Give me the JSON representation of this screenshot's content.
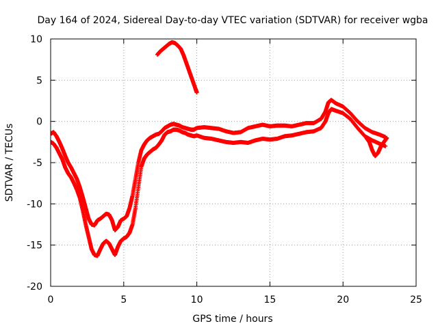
{
  "chart_data": {
    "type": "line",
    "title": "Day 164 of 2024, Sidereal Day-to-day VTEC variation (SDTVAR) for receiver wgba",
    "xlabel": "GPS time / hours",
    "ylabel": "SDTVAR / TECUs",
    "xlim": [
      0,
      25
    ],
    "ylim": [
      -20,
      10
    ],
    "xticks": [
      0,
      5,
      10,
      15,
      20,
      25
    ],
    "yticks": [
      -20,
      -15,
      -10,
      -5,
      0,
      5,
      10
    ],
    "xtick_labels": [
      "0",
      "5",
      "10",
      "15",
      "20",
      "25"
    ],
    "ytick_labels": [
      "-20",
      "-15",
      "-10",
      "-5",
      "0",
      "5",
      "10"
    ],
    "grid": true,
    "legend": "none",
    "marker": "plus",
    "series": [
      {
        "name": "SDTVAR main band (upper edge)",
        "color": "#ff0000",
        "x": [
          0.0,
          0.2,
          0.4,
          0.6,
          0.8,
          1.0,
          1.2,
          1.4,
          1.6,
          1.8,
          2.0,
          2.2,
          2.4,
          2.6,
          2.8,
          3.0,
          3.2,
          3.4,
          3.6,
          3.8,
          4.0,
          4.2,
          4.4,
          4.6,
          4.8,
          5.0,
          5.2,
          5.4,
          5.6,
          5.8,
          6.0,
          6.2,
          6.4,
          6.6,
          6.8,
          7.0,
          7.2,
          7.4,
          7.6,
          7.8,
          8.0,
          8.2,
          8.4,
          8.6,
          8.8,
          9.0,
          9.2,
          9.4,
          9.6,
          9.8,
          10.0,
          10.5,
          11.0,
          11.5,
          12.0,
          12.5,
          13.0,
          13.5,
          14.0,
          14.5,
          15.0,
          15.5,
          16.0,
          16.5,
          17.0,
          17.5,
          18.0,
          18.5,
          18.8,
          19.0,
          19.2,
          19.5,
          20.0,
          20.5,
          21.0,
          21.5,
          22.0,
          22.5,
          22.9
        ],
        "values": [
          -1.5,
          -1.3,
          -1.8,
          -2.5,
          -3.3,
          -4.2,
          -5.0,
          -5.6,
          -6.3,
          -7.0,
          -8.0,
          -9.2,
          -10.5,
          -11.8,
          -12.5,
          -12.6,
          -12.0,
          -11.8,
          -11.5,
          -11.2,
          -11.3,
          -12.0,
          -13.2,
          -12.8,
          -12.0,
          -11.8,
          -11.5,
          -10.5,
          -9.0,
          -7.0,
          -5.0,
          -3.5,
          -2.8,
          -2.3,
          -2.0,
          -1.8,
          -1.6,
          -1.5,
          -1.2,
          -0.8,
          -0.6,
          -0.4,
          -0.3,
          -0.4,
          -0.5,
          -0.7,
          -0.8,
          -0.9,
          -1.0,
          -1.0,
          -0.8,
          -0.7,
          -0.8,
          -0.9,
          -1.2,
          -1.4,
          -1.3,
          -0.8,
          -0.6,
          -0.4,
          -0.6,
          -0.5,
          -0.5,
          -0.6,
          -0.4,
          -0.2,
          -0.2,
          0.3,
          1.2,
          2.3,
          2.6,
          2.2,
          1.8,
          1.0,
          0.0,
          -0.8,
          -1.3,
          -1.6,
          -1.9
        ]
      },
      {
        "name": "SDTVAR main band (lower edge)",
        "color": "#ff0000",
        "x": [
          0.0,
          0.2,
          0.4,
          0.6,
          0.8,
          1.0,
          1.2,
          1.4,
          1.6,
          1.8,
          2.0,
          2.2,
          2.4,
          2.6,
          2.8,
          3.0,
          3.2,
          3.4,
          3.6,
          3.8,
          4.0,
          4.2,
          4.4,
          4.6,
          4.8,
          5.0,
          5.2,
          5.4,
          5.6,
          5.8,
          6.0,
          6.2,
          6.4,
          6.6,
          6.8,
          7.0,
          7.2,
          7.4,
          7.6,
          7.8,
          8.0,
          8.2,
          8.4,
          8.6,
          8.8,
          9.0,
          9.2,
          9.4,
          9.6,
          9.8,
          10.0,
          10.5,
          11.0,
          11.5,
          12.0,
          12.5,
          13.0,
          13.5,
          14.0,
          14.5,
          15.0,
          15.5,
          16.0,
          16.5,
          17.0,
          17.5,
          18.0,
          18.5,
          18.8,
          19.0,
          19.2,
          19.5,
          20.0,
          20.5,
          21.0,
          21.5,
          22.0,
          22.5,
          22.9
        ],
        "values": [
          -2.5,
          -2.7,
          -3.2,
          -3.9,
          -4.6,
          -5.6,
          -6.3,
          -6.8,
          -7.5,
          -8.3,
          -9.3,
          -10.8,
          -12.5,
          -14.0,
          -15.5,
          -16.2,
          -16.3,
          -15.5,
          -14.8,
          -14.5,
          -14.8,
          -15.5,
          -16.2,
          -15.2,
          -14.5,
          -14.2,
          -14.0,
          -13.5,
          -12.5,
          -10.5,
          -8.0,
          -5.5,
          -4.5,
          -4.0,
          -3.7,
          -3.4,
          -3.2,
          -2.8,
          -2.3,
          -1.6,
          -1.3,
          -1.2,
          -1.0,
          -1.0,
          -1.1,
          -1.3,
          -1.4,
          -1.6,
          -1.7,
          -1.8,
          -1.7,
          -2.0,
          -2.1,
          -2.3,
          -2.5,
          -2.6,
          -2.5,
          -2.6,
          -2.3,
          -2.1,
          -2.2,
          -2.1,
          -1.8,
          -1.7,
          -1.5,
          -1.3,
          -1.2,
          -0.8,
          0.0,
          1.0,
          1.5,
          1.3,
          1.0,
          0.3,
          -0.8,
          -1.8,
          -2.3,
          -2.7,
          -3.0
        ]
      },
      {
        "name": "SDTVAR evening branch (x 21.5-23)",
        "color": "#ff0000",
        "x": [
          21.6,
          21.8,
          22.0,
          22.2,
          22.4,
          22.6,
          22.8,
          23.0
        ],
        "values": [
          -2.0,
          -2.5,
          -3.5,
          -4.2,
          -3.8,
          -3.0,
          -2.5,
          -2.0
        ]
      },
      {
        "name": "SDTVAR separate arc (x 7.3-10)",
        "color": "#ff0000",
        "x": [
          7.3,
          7.5,
          7.7,
          7.9,
          8.1,
          8.3,
          8.5,
          8.7,
          8.9,
          9.1,
          9.3,
          9.5,
          9.7,
          9.9,
          10.0
        ],
        "values": [
          8.1,
          8.5,
          8.8,
          9.1,
          9.4,
          9.6,
          9.5,
          9.2,
          8.8,
          8.0,
          7.0,
          6.0,
          5.0,
          4.0,
          3.5
        ]
      }
    ]
  }
}
